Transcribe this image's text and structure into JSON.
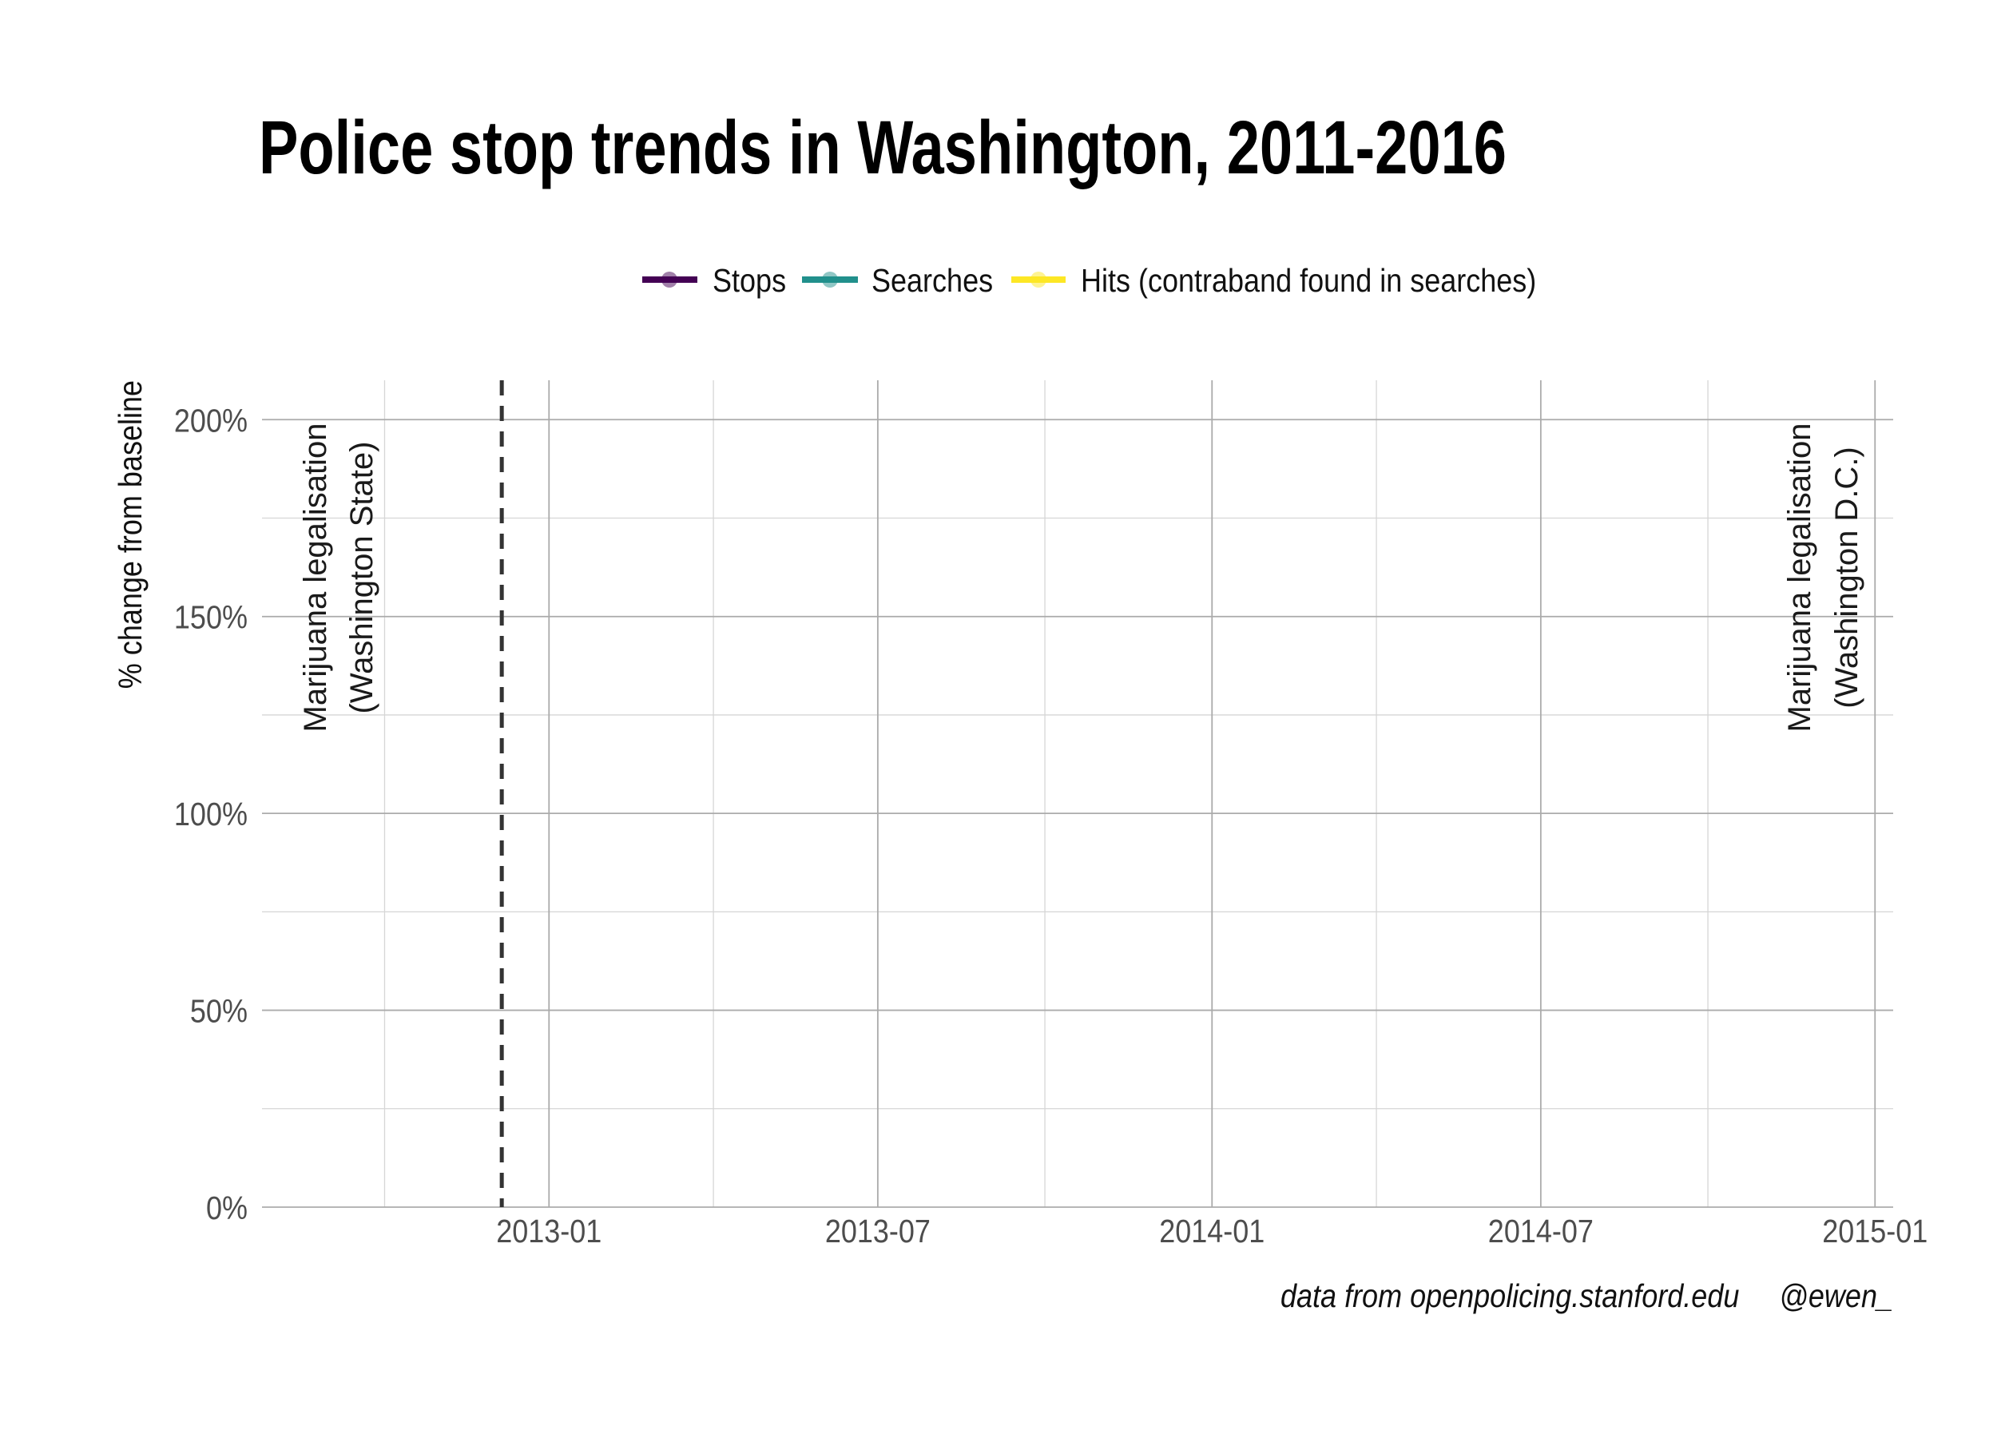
{
  "chart_data": {
    "type": "line",
    "title": "Police stop trends in Washington, 2011-2016",
    "xlabel": "",
    "ylabel": "% change from baseline",
    "caption": "data from openpolicing.stanford.edu     @ewen_",
    "legend_position": "top",
    "grid": true,
    "x_scale": "date",
    "xlim": [
      "2012-07-27",
      "2015-01-11"
    ],
    "ylim": [
      0,
      210
    ],
    "x_ticks": [
      {
        "value": "2013-01-01",
        "label": "2013-01"
      },
      {
        "value": "2013-07-01",
        "label": "2013-07"
      },
      {
        "value": "2014-01-01",
        "label": "2014-01"
      },
      {
        "value": "2014-07-01",
        "label": "2014-07"
      },
      {
        "value": "2015-01-01",
        "label": "2015-01"
      }
    ],
    "y_ticks": [
      {
        "value": 0,
        "label": "0%"
      },
      {
        "value": 50,
        "label": "50%"
      },
      {
        "value": 100,
        "label": "100%"
      },
      {
        "value": 150,
        "label": "150%"
      },
      {
        "value": 200,
        "label": "200%"
      }
    ],
    "series": [
      {
        "name": "Stops",
        "color": "#440154",
        "values": []
      },
      {
        "name": "Searches",
        "color": "#21908C",
        "values": []
      },
      {
        "name": "Hits (contraband found in searches)",
        "color": "#FDE725",
        "values": []
      }
    ],
    "vlines": [
      {
        "x": "2012-12-06",
        "style": "dashed",
        "color": "#333333"
      }
    ],
    "annotations": [
      {
        "lines": [
          "Marijuana legalisation",
          "(Washington State)"
        ]
      },
      {
        "lines": [
          "Marijuana legalisation",
          "(Washington D.C.)"
        ]
      }
    ]
  }
}
